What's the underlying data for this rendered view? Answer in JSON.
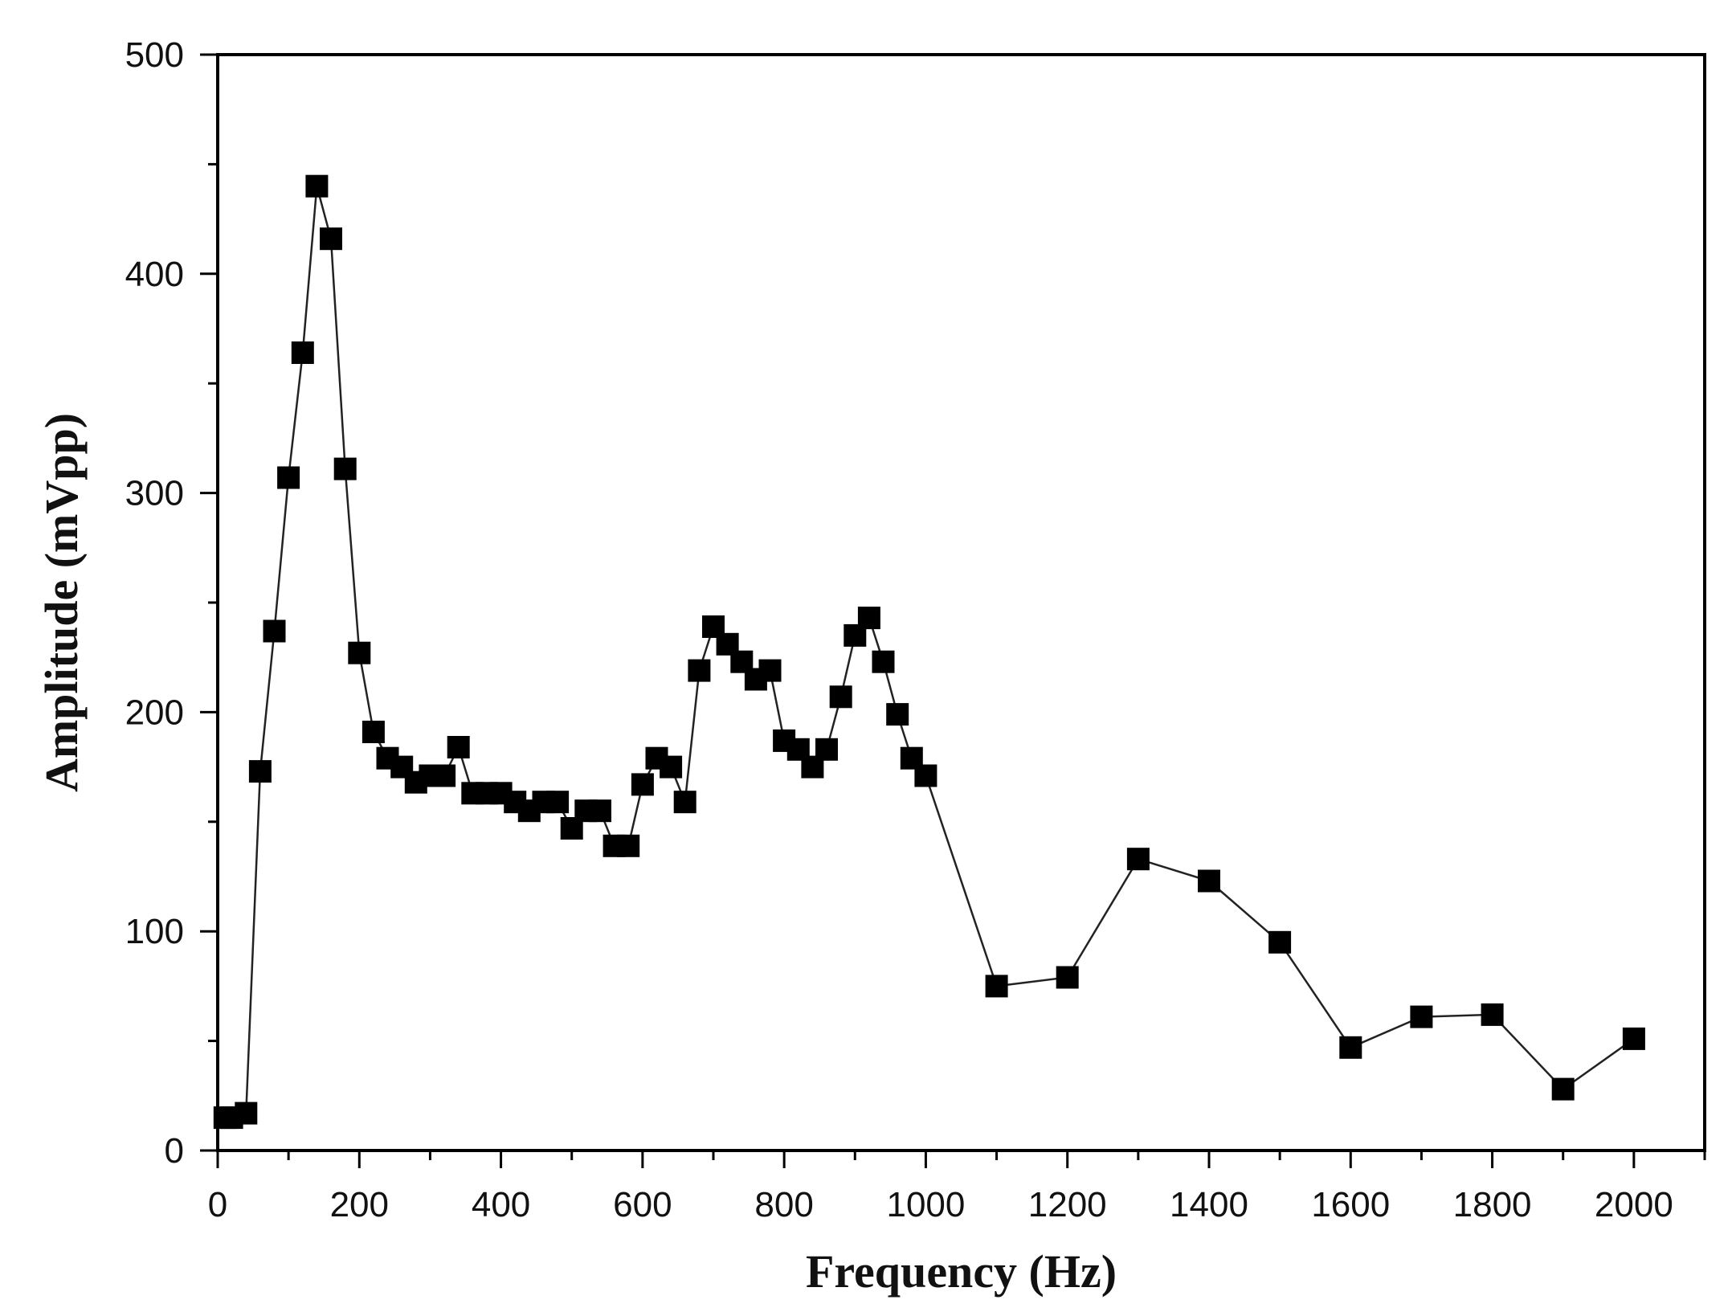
{
  "chart_data": {
    "type": "line",
    "xlabel": "Frequency (Hz)",
    "ylabel": "Amplitude (mVpp)",
    "xlim": [
      0,
      2100
    ],
    "ylim": [
      0,
      500
    ],
    "x_ticks": [
      0,
      200,
      400,
      600,
      800,
      1000,
      1200,
      1400,
      1600,
      1800,
      2000
    ],
    "y_ticks": [
      0,
      100,
      200,
      300,
      400,
      500
    ],
    "x_tick_labels": [
      "0",
      "200",
      "400",
      "600",
      "800",
      "1000",
      "1200",
      "1400",
      "1600",
      "1800",
      "2000"
    ],
    "y_tick_labels": [
      "0",
      "100",
      "200",
      "300",
      "400",
      "500"
    ],
    "grid": false,
    "marker": "filled-square",
    "colors": {
      "line": "#222222",
      "marker": "#000000",
      "axis": "#000000"
    },
    "series": [
      {
        "x": [
          10,
          20,
          40,
          60,
          80,
          100,
          120,
          140,
          160,
          180,
          200,
          220,
          240,
          260,
          280,
          300,
          320,
          340,
          360,
          380,
          400,
          420,
          440,
          460,
          480,
          500,
          520,
          540,
          560,
          580,
          600,
          620,
          640,
          660,
          680,
          700,
          720,
          740,
          760,
          780,
          800,
          820,
          840,
          860,
          880,
          900,
          920,
          940,
          960,
          980,
          1000,
          1100,
          1200,
          1300,
          1400,
          1500,
          1600,
          1700,
          1800,
          1900,
          2000
        ],
        "y": [
          15,
          15,
          17,
          173,
          237,
          307,
          364,
          440,
          416,
          311,
          227,
          191,
          179,
          175,
          168,
          171,
          171,
          184,
          163,
          163,
          163,
          159,
          155,
          159,
          159,
          147,
          155,
          155,
          139,
          139,
          167,
          179,
          175,
          159,
          219,
          239,
          231,
          223,
          215,
          219,
          187,
          183,
          175,
          183,
          207,
          235,
          243,
          223,
          199,
          179,
          171,
          75,
          79,
          133,
          123,
          95,
          47,
          61,
          62,
          28,
          51
        ]
      }
    ]
  }
}
